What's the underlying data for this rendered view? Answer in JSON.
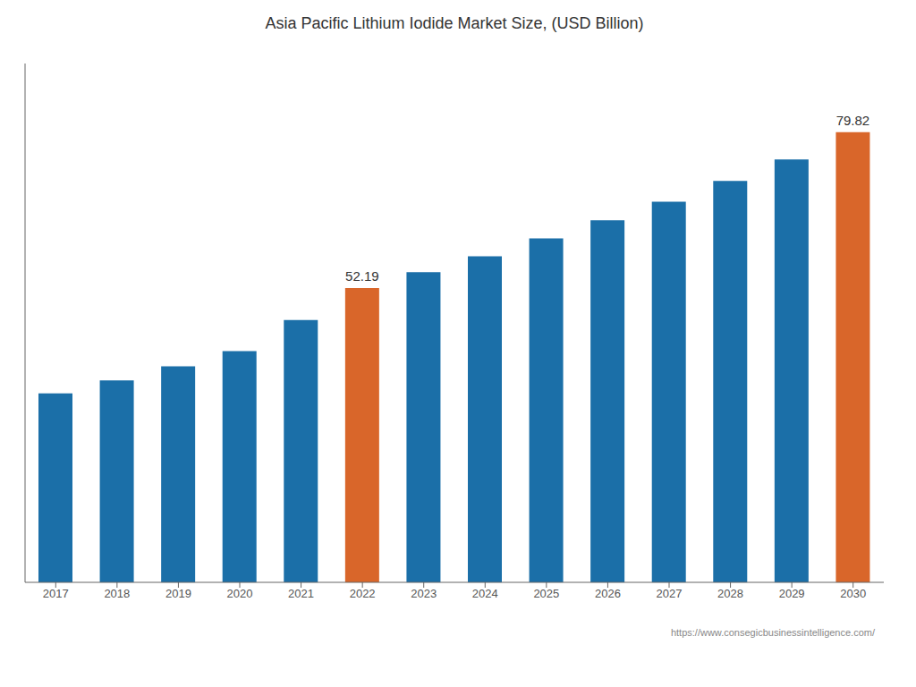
{
  "chart_data": {
    "type": "bar",
    "title": "Asia Pacific Lithium Iodide Market Size, (USD Billion)",
    "categories": [
      "2017",
      "2018",
      "2019",
      "2020",
      "2021",
      "2022",
      "2023",
      "2024",
      "2025",
      "2026",
      "2027",
      "2028",
      "2029",
      "2030"
    ],
    "values": [
      33.5,
      35.8,
      38.3,
      41.0,
      46.5,
      52.19,
      55.0,
      57.8,
      61.0,
      64.2,
      67.5,
      71.2,
      75.0,
      79.82
    ],
    "colors": [
      "#1b6fa8",
      "#1b6fa8",
      "#1b6fa8",
      "#1b6fa8",
      "#1b6fa8",
      "#d9662a",
      "#1b6fa8",
      "#1b6fa8",
      "#1b6fa8",
      "#1b6fa8",
      "#1b6fa8",
      "#1b6fa8",
      "#1b6fa8",
      "#d9662a"
    ],
    "annotations": [
      {
        "x": "2022",
        "text": "52.19"
      },
      {
        "x": "2030",
        "text": "79.82"
      }
    ],
    "footer": "https://www.consegicbusinessintelligence.com/",
    "ylim": [
      0,
      92
    ],
    "grid": false,
    "tick_labels": "x"
  }
}
